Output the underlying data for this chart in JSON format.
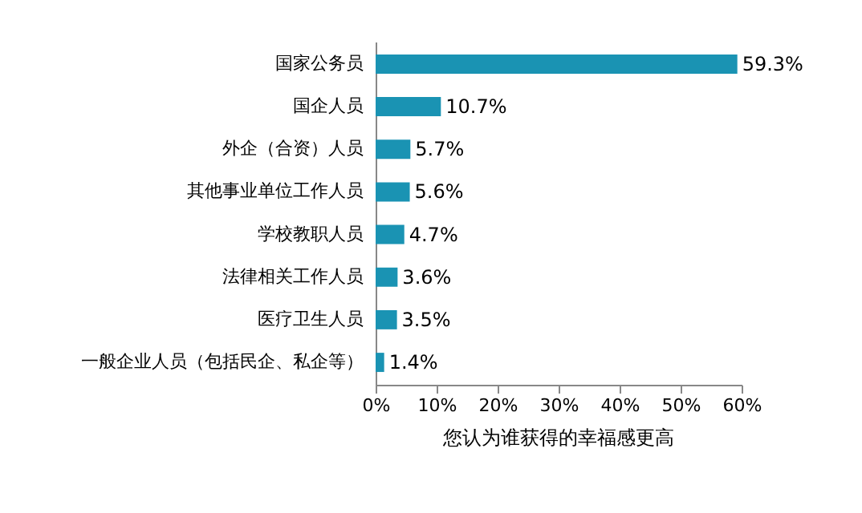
{
  "chart_data": {
    "type": "bar",
    "orientation": "horizontal",
    "title": "您认为谁获得的幸福感更高",
    "categories": [
      "国家公务员",
      "国企人员",
      "外企（合资）人员",
      "其他事业单位工作人员",
      "学校教职人员",
      "法律相关工作人员",
      "医疗卫生人员",
      "一般企业人员（包括民企、私企等）"
    ],
    "values": [
      59.3,
      10.7,
      5.7,
      5.6,
      4.7,
      3.6,
      3.5,
      1.4
    ],
    "value_labels": [
      "59.3%",
      "10.7%",
      "5.7%",
      "5.6%",
      "4.7%",
      "3.6%",
      "3.5%",
      "1.4%"
    ],
    "color": "#1a93b3",
    "xlim": [
      0,
      60
    ],
    "xticks": [
      {
        "value": 0,
        "label": "0%"
      },
      {
        "value": 10,
        "label": "10%"
      },
      {
        "value": 20,
        "label": "20%"
      },
      {
        "value": 30,
        "label": "30%"
      },
      {
        "value": 40,
        "label": "40%"
      },
      {
        "value": 50,
        "label": "50%"
      },
      {
        "value": 60,
        "label": "60%"
      }
    ],
    "grid": false
  }
}
